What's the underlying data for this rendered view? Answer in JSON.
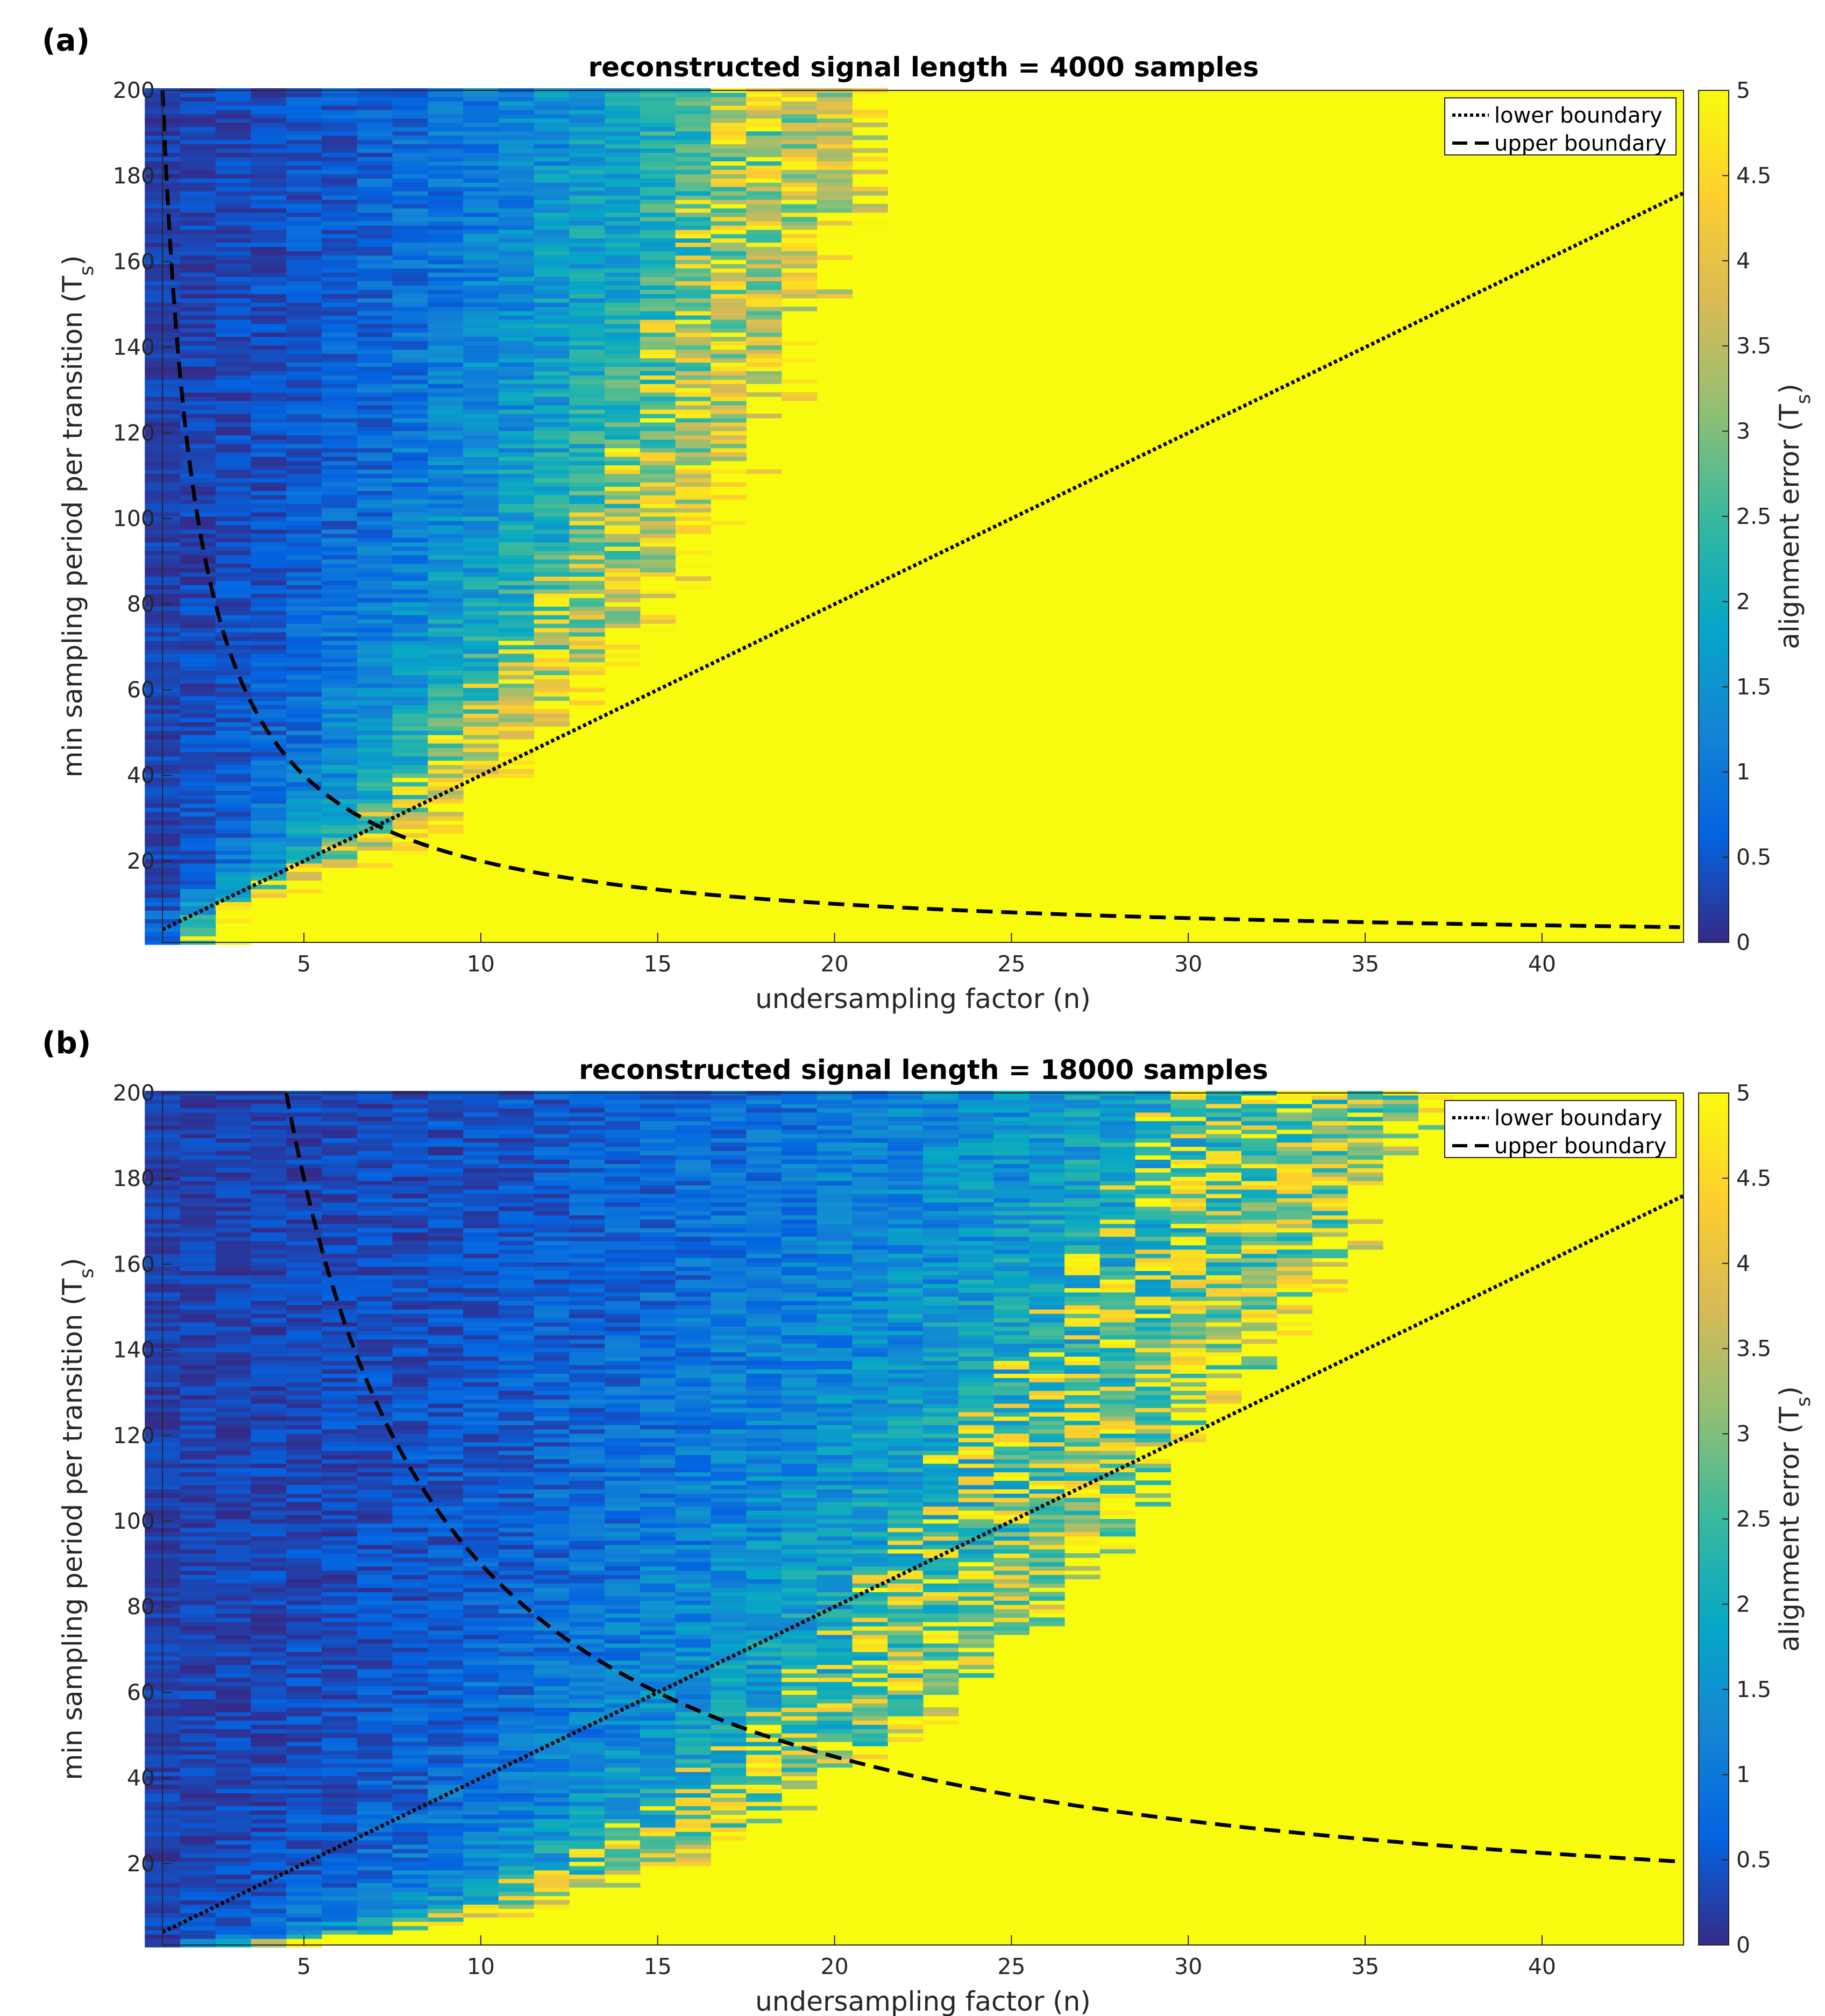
{
  "chart_data": [
    {
      "panel": "(a)",
      "type": "heatmap",
      "title": "reconstructed signal length = 4000 samples",
      "xlabel": "undersampling factor (n)",
      "ylabel": "min sampling period per transition (T",
      "ylabel_sub": "s",
      "ylabel_end": ")",
      "xlim": [
        1,
        44
      ],
      "ylim": [
        1,
        200
      ],
      "xticks": [
        5,
        10,
        15,
        20,
        25,
        30,
        35,
        40
      ],
      "yticks": [
        20,
        40,
        60,
        80,
        100,
        120,
        140,
        160,
        180,
        200
      ],
      "colorbar": {
        "label": "alignment error (T",
        "label_sub": "s",
        "label_end": ")",
        "range": [
          0,
          5
        ],
        "ticks": [
          "0",
          "0.5",
          "1",
          "1.5",
          "2",
          "2.5",
          "3",
          "3.5",
          "4",
          "4.5",
          "5"
        ]
      },
      "colormap": "parula",
      "cap_value": 5,
      "failure_cutoff_n": [
        [
          5,
          2.3
        ],
        [
          10,
          3.3
        ],
        [
          20,
          6.5
        ],
        [
          30,
          8.5
        ],
        [
          40,
          10.0
        ],
        [
          50,
          11.2
        ],
        [
          60,
          12.2
        ],
        [
          70,
          13.5
        ],
        [
          80,
          14.5
        ],
        [
          100,
          16.0
        ],
        [
          120,
          17.5
        ],
        [
          140,
          18.3
        ],
        [
          160,
          19.5
        ],
        [
          180,
          20.2
        ],
        [
          200,
          20.5
        ]
      ],
      "error_slope": 3.4,
      "noise_seed": 11,
      "series": [
        {
          "name": "lower boundary",
          "style": "dotted",
          "formula": "y = 4n",
          "x": [
            1,
            10,
            20,
            30,
            44
          ],
          "y": [
            4,
            40,
            80,
            120,
            176
          ]
        },
        {
          "name": "upper boundary",
          "style": "dashed",
          "formula": "y = 200 / n",
          "x": [
            1,
            2,
            4,
            8,
            15,
            30,
            44
          ],
          "y": [
            200,
            100,
            50,
            25,
            13.3,
            6.7,
            4.5
          ]
        }
      ],
      "legend": {
        "location": "top-right",
        "entries": [
          "lower boundary",
          "upper boundary"
        ]
      }
    },
    {
      "panel": "(b)",
      "type": "heatmap",
      "title": "reconstructed signal length = 18000 samples",
      "xlabel": "undersampling factor (n)",
      "ylabel": "min sampling period per transition (T",
      "ylabel_sub": "s",
      "ylabel_end": ")",
      "xlim": [
        1,
        44
      ],
      "ylim": [
        1,
        200
      ],
      "xticks": [
        5,
        10,
        15,
        20,
        25,
        30,
        35,
        40
      ],
      "yticks": [
        20,
        40,
        60,
        80,
        100,
        120,
        140,
        160,
        180,
        200
      ],
      "colorbar": {
        "label": "alignment error (T",
        "label_sub": "s",
        "label_end": ")",
        "range": [
          0,
          5
        ],
        "ticks": [
          "0",
          "0.5",
          "1",
          "1.5",
          "2",
          "2.5",
          "3",
          "3.5",
          "4",
          "4.5",
          "5"
        ]
      },
      "colormap": "parula",
      "cap_value": 5,
      "failure_cutoff_n": [
        [
          2,
          4.0
        ],
        [
          5,
          8.5
        ],
        [
          10,
          11.0
        ],
        [
          20,
          15.0
        ],
        [
          30,
          17.5
        ],
        [
          40,
          19.5
        ],
        [
          50,
          21.5
        ],
        [
          60,
          23.0
        ],
        [
          80,
          25.5
        ],
        [
          100,
          27.5
        ],
        [
          120,
          29.0
        ],
        [
          140,
          31.5
        ],
        [
          160,
          33.5
        ],
        [
          180,
          35.0
        ],
        [
          200,
          36.5
        ]
      ],
      "error_slope": 2.6,
      "noise_seed": 29,
      "series": [
        {
          "name": "lower boundary",
          "style": "dotted",
          "formula": "y = 4n",
          "x": [
            1,
            10,
            20,
            30,
            44
          ],
          "y": [
            4,
            40,
            80,
            120,
            176
          ]
        },
        {
          "name": "upper boundary",
          "style": "dashed",
          "formula": "y = 900 / n",
          "x": [
            4.5,
            10,
            15,
            20,
            30,
            44
          ],
          "y": [
            200,
            90,
            60,
            45,
            30,
            20.5
          ]
        }
      ],
      "legend": {
        "location": "top-right",
        "entries": [
          "lower boundary",
          "upper boundary"
        ]
      }
    }
  ]
}
